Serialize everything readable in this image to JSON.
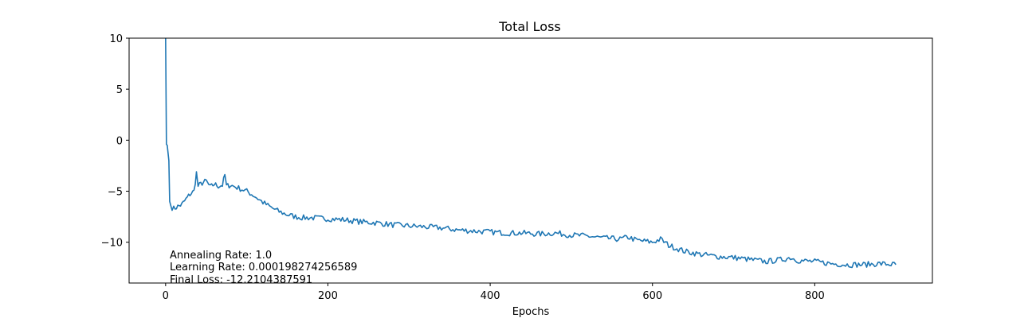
{
  "chart_data": {
    "type": "line",
    "title": "Total Loss",
    "xlabel": "Epochs",
    "ylabel": "",
    "xlim": [
      -45,
      945
    ],
    "ylim": [
      -14,
      10
    ],
    "xticks": [
      0,
      200,
      400,
      600,
      800
    ],
    "yticks": [
      10,
      5,
      0,
      -5,
      -10
    ],
    "xtick_labels": [
      "0",
      "200",
      "400",
      "600",
      "800"
    ],
    "ytick_labels": [
      "10",
      "5",
      "0",
      "−5",
      "−10"
    ],
    "grid": false,
    "line_color": "#1f77b4",
    "annotations": [
      "Annealing Rate: 1.0",
      "Learning Rate: 0.000198274256589",
      "Final Loss: -12.2104387591"
    ],
    "series": [
      {
        "x": [
          0,
          1,
          2,
          4,
          5,
          6,
          8,
          10,
          15,
          20,
          25,
          30,
          35,
          38,
          40,
          45,
          50,
          55,
          60,
          65,
          70,
          73,
          75,
          80,
          90,
          100,
          110,
          120,
          130,
          140,
          150,
          160,
          170,
          180,
          200,
          220,
          240,
          260,
          280,
          300,
          320,
          340,
          360,
          380,
          400,
          420,
          440,
          460,
          480,
          500,
          520,
          540,
          560,
          570,
          580,
          600,
          610,
          620,
          640,
          660,
          680,
          700,
          720,
          740,
          760,
          770,
          780,
          800,
          820,
          840,
          860,
          880,
          900
        ],
        "y": [
          10,
          -0.4,
          -0.5,
          -2.0,
          -6.0,
          -6.3,
          -6.6,
          -6.7,
          -6.5,
          -6.3,
          -5.8,
          -5.3,
          -5.0,
          -3.2,
          -4.5,
          -4.2,
          -4.0,
          -4.6,
          -4.3,
          -4.5,
          -4.4,
          -3.4,
          -4.5,
          -4.4,
          -4.7,
          -5.0,
          -5.5,
          -6.1,
          -6.6,
          -7.0,
          -7.3,
          -7.5,
          -7.6,
          -7.6,
          -7.7,
          -7.8,
          -8.0,
          -8.1,
          -8.3,
          -8.4,
          -8.5,
          -8.6,
          -8.8,
          -8.9,
          -9.0,
          -9.1,
          -9.1,
          -9.2,
          -9.1,
          -9.3,
          -9.4,
          -9.6,
          -9.7,
          -9.5,
          -9.8,
          -10.0,
          -9.7,
          -10.3,
          -10.9,
          -11.2,
          -11.4,
          -11.5,
          -11.7,
          -11.9,
          -11.7,
          -11.5,
          -11.8,
          -11.9,
          -12.1,
          -12.2,
          -12.2,
          -12.1,
          -12.2
        ]
      }
    ]
  }
}
